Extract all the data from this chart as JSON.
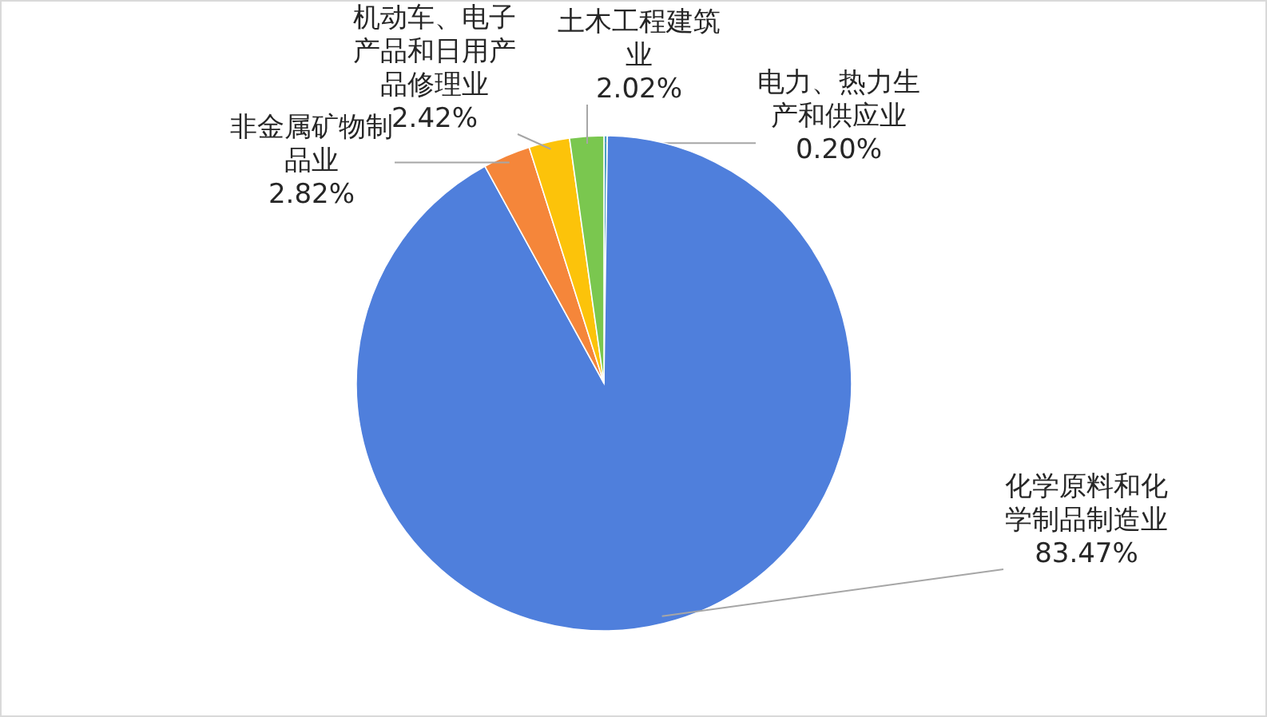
{
  "chart_data": {
    "type": "pie",
    "categories": [
      "电力、热力生产和供应业",
      "化学原料和化学制品制造业",
      "非金属矿物制品业",
      "机动车、电子产品和日用产品修理业",
      "土木工程建筑业"
    ],
    "values": [
      0.2,
      83.47,
      2.82,
      2.42,
      2.02
    ],
    "colors": [
      "#4aa0c0",
      "#4f7fdc",
      "#f5863a",
      "#fcc30a",
      "#7ac74f"
    ],
    "value_labels": [
      "0.20%",
      "83.47%",
      "2.82%",
      "2.42%",
      "2.02%"
    ]
  }
}
